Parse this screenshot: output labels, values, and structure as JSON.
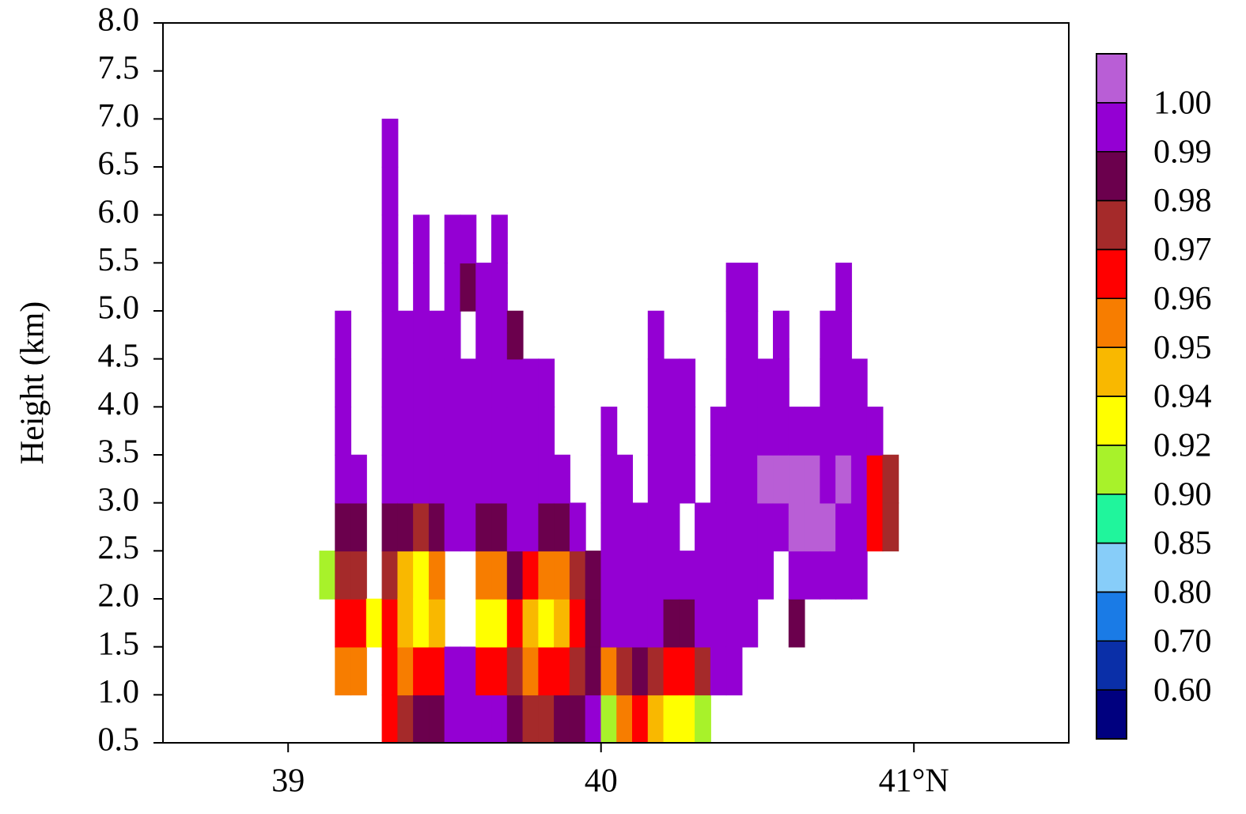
{
  "chart_data": {
    "type": "heatmap",
    "ylabel": "Height (km)",
    "xlim": [
      38.6,
      41.495
    ],
    "xticks": [
      39,
      40,
      {
        "value": 41,
        "label": "41°N"
      }
    ],
    "ylim": [
      0.5,
      8.0
    ],
    "yticks": [
      0.5,
      {
        "value": 1,
        "label": "1.0"
      },
      1.5,
      {
        "value": 2,
        "label": "2.0"
      },
      2.5,
      {
        "value": 3,
        "label": "3.0"
      },
      3.5,
      {
        "value": 4,
        "label": "4.0"
      },
      4.5,
      {
        "value": 5,
        "label": "5.0"
      },
      5.5,
      {
        "value": 6,
        "label": "6.0"
      },
      6.5,
      {
        "value": 7,
        "label": "7.0"
      },
      7.5,
      {
        "value": 8,
        "label": "8.0"
      }
    ],
    "x": [
      39.125,
      39.175,
      39.225,
      39.275,
      39.325,
      39.375,
      39.425,
      39.475,
      39.525,
      39.575,
      39.625,
      39.675,
      39.725,
      39.775,
      39.825,
      39.875,
      39.925,
      39.975,
      40.025,
      40.075,
      40.125,
      40.175,
      40.225,
      40.275,
      40.325,
      40.375,
      40.425,
      40.475,
      40.525,
      40.575,
      40.625,
      40.675,
      40.725,
      40.775,
      40.825,
      40.875,
      40.925
    ],
    "y": [
      0.75,
      1.25,
      1.75,
      2.25,
      2.75,
      3.25,
      3.75,
      4.25,
      4.75,
      5.25,
      5.75,
      6.25,
      6.75
    ],
    "z": [
      [
        null,
        null,
        null,
        0.9,
        null,
        null,
        null,
        null,
        null,
        null,
        null,
        null,
        null
      ],
      [
        null,
        0.955,
        0.965,
        0.975,
        0.985,
        0.99,
        0.995,
        0.995,
        0.995,
        null,
        null,
        null,
        null
      ],
      [
        null,
        0.955,
        0.96,
        0.975,
        0.985,
        0.99,
        null,
        null,
        null,
        null,
        null,
        null,
        null
      ],
      [
        null,
        null,
        0.93,
        null,
        null,
        null,
        null,
        null,
        null,
        null,
        null,
        null,
        null
      ],
      [
        0.965,
        0.965,
        0.96,
        0.97,
        0.98,
        0.995,
        0.995,
        0.995,
        0.995,
        0.995,
        0.995,
        0.995,
        0.995
      ],
      [
        0.975,
        0.955,
        0.94,
        0.945,
        0.98,
        0.995,
        0.995,
        0.995,
        0.995,
        null,
        null,
        null,
        null
      ],
      [
        0.985,
        0.96,
        0.93,
        0.935,
        0.975,
        0.995,
        0.995,
        0.995,
        0.995,
        0.995,
        0.995,
        null,
        null
      ],
      [
        0.985,
        0.965,
        0.945,
        0.95,
        0.98,
        0.995,
        0.995,
        0.995,
        0.995,
        null,
        null,
        null,
        null
      ],
      [
        0.99,
        0.99,
        null,
        null,
        0.995,
        0.995,
        0.995,
        0.995,
        0.995,
        0.995,
        0.995,
        null,
        null
      ],
      [
        0.995,
        0.99,
        null,
        null,
        0.99,
        0.995,
        0.995,
        0.995,
        null,
        0.985,
        0.995,
        null,
        null
      ],
      [
        0.995,
        0.96,
        0.92,
        0.95,
        0.985,
        0.99,
        0.99,
        0.99,
        0.99,
        0.99,
        null,
        null,
        null
      ],
      [
        0.99,
        0.96,
        0.93,
        0.955,
        0.985,
        0.99,
        0.99,
        0.99,
        0.99,
        0.995,
        0.995,
        null,
        null
      ],
      [
        0.985,
        0.975,
        0.965,
        0.98,
        0.99,
        0.995,
        0.995,
        0.995,
        0.985,
        null,
        null,
        null,
        null
      ],
      [
        0.97,
        0.955,
        0.94,
        0.96,
        0.99,
        0.995,
        0.995,
        0.995,
        null,
        null,
        null,
        null,
        null
      ],
      [
        0.975,
        0.96,
        0.935,
        0.95,
        0.985,
        0.995,
        0.995,
        0.995,
        null,
        null,
        null,
        null,
        null
      ],
      [
        0.98,
        0.965,
        0.94,
        0.955,
        0.985,
        0.995,
        null,
        null,
        null,
        null,
        null,
        null,
        null
      ],
      [
        0.985,
        0.975,
        0.96,
        0.97,
        0.99,
        null,
        null,
        null,
        null,
        null,
        null,
        null,
        null
      ],
      [
        0.99,
        0.985,
        0.98,
        0.985,
        null,
        null,
        null,
        null,
        null,
        null,
        null,
        null,
        null
      ],
      [
        0.9,
        0.955,
        0.99,
        0.995,
        0.995,
        0.995,
        0.995,
        null,
        null,
        null,
        null,
        null,
        null
      ],
      [
        0.955,
        0.975,
        0.99,
        0.995,
        0.995,
        0.995,
        null,
        null,
        null,
        null,
        null,
        null,
        null
      ],
      [
        0.965,
        0.985,
        0.99,
        0.995,
        0.995,
        null,
        null,
        null,
        null,
        null,
        null,
        null,
        null
      ],
      [
        0.94,
        0.97,
        0.99,
        0.995,
        0.995,
        0.995,
        0.995,
        0.995,
        0.995,
        null,
        null,
        null,
        null
      ],
      [
        0.935,
        0.96,
        0.985,
        0.995,
        0.995,
        0.995,
        0.995,
        0.995,
        null,
        null,
        null,
        null,
        null
      ],
      [
        0.93,
        0.965,
        0.985,
        0.995,
        null,
        0.995,
        0.995,
        0.995,
        null,
        null,
        null,
        null,
        null
      ],
      [
        0.9,
        0.975,
        0.99,
        0.995,
        0.995,
        null,
        null,
        null,
        null,
        null,
        null,
        null,
        null
      ],
      [
        null,
        0.995,
        0.995,
        0.995,
        0.995,
        0.995,
        0.995,
        null,
        null,
        null,
        null,
        null,
        null
      ],
      [
        null,
        0.995,
        0.995,
        0.995,
        0.995,
        0.995,
        0.995,
        0.995,
        0.995,
        0.995,
        null,
        null,
        null
      ],
      [
        null,
        null,
        0.995,
        0.995,
        0.995,
        0.995,
        0.995,
        0.995,
        0.995,
        0.995,
        null,
        null,
        null
      ],
      [
        null,
        null,
        null,
        0.995,
        0.995,
        1.005,
        0.995,
        0.995,
        null,
        null,
        null,
        null,
        null
      ],
      [
        null,
        null,
        null,
        null,
        0.995,
        1.005,
        0.995,
        0.995,
        0.995,
        null,
        null,
        null,
        null
      ],
      [
        null,
        null,
        0.98,
        0.995,
        1.005,
        1.005,
        0.995,
        null,
        null,
        null,
        null,
        null,
        null
      ],
      [
        null,
        null,
        null,
        0.995,
        1.005,
        1.005,
        0.995,
        null,
        null,
        null,
        null,
        null,
        null
      ],
      [
        null,
        null,
        null,
        0.995,
        1.005,
        0.995,
        0.995,
        0.995,
        0.995,
        null,
        null,
        null,
        null
      ],
      [
        null,
        null,
        null,
        0.995,
        0.995,
        1.005,
        0.995,
        0.995,
        0.995,
        0.995,
        null,
        null,
        null
      ],
      [
        null,
        null,
        null,
        0.995,
        0.995,
        0.995,
        0.995,
        0.995,
        null,
        null,
        null,
        null,
        null
      ],
      [
        null,
        null,
        null,
        null,
        0.96,
        0.965,
        0.995,
        null,
        null,
        null,
        null,
        null,
        null
      ],
      [
        null,
        null,
        null,
        null,
        0.975,
        0.97,
        null,
        null,
        null,
        null,
        null,
        null,
        null
      ]
    ],
    "colorbar": {
      "levels": [
        {
          "value": 0.6,
          "label": "0.60"
        },
        {
          "value": 0.7,
          "label": "0.70"
        },
        {
          "value": 0.8,
          "label": "0.80"
        },
        0.85,
        {
          "value": 0.9,
          "label": "0.90"
        },
        0.92,
        0.94,
        0.95,
        0.96,
        0.97,
        0.98,
        0.99,
        {
          "value": 1,
          "label": "1.00"
        }
      ],
      "colors": [
        "#00007f",
        "#0a2fa8",
        "#1a7be6",
        "#87cdf9",
        "#20f59c",
        "#a8f22a",
        "#ffff00",
        "#f9b800",
        "#f77d00",
        "#ff0000",
        "#a52a2a",
        "#6b004d",
        "#9400d3",
        "#b95ed6"
      ]
    }
  }
}
